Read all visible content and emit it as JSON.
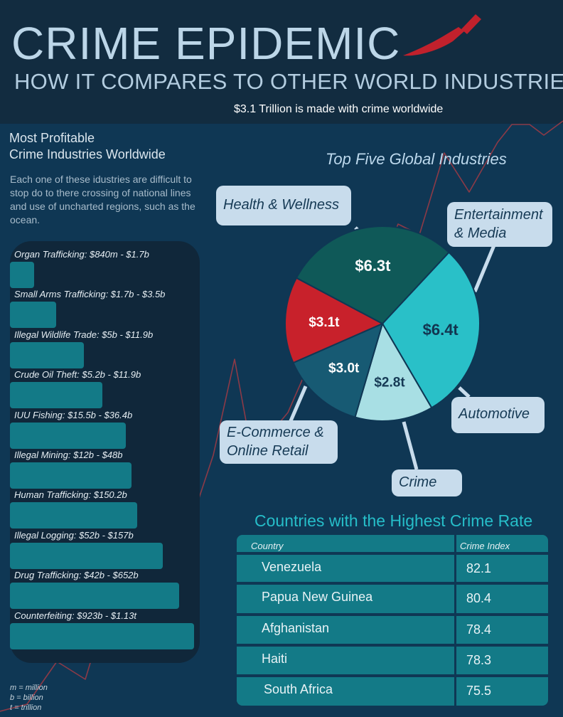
{
  "header": {
    "title": "CRIME EPIDEMIC",
    "subtitle": "HOW IT COMPARES TO OTHER WORLD INDUSTRIES",
    "tagline": "$3.1 Trillion is made with crime worldwide"
  },
  "colors": {
    "header_bg": "#122c40",
    "page_bg": "#0f3754",
    "bar_color": "#137a87",
    "knife": "#c1212c",
    "table_title": "#26bec9"
  },
  "left": {
    "heading_line1": "Most Profitable",
    "heading_line2": "Crime Industries Worldwide",
    "description": "Each one of these idustries are difficult to stop do to there crossing of national lines and use of uncharted regions, such as the ocean.",
    "legend": [
      "m = million",
      "b = billion",
      "t = trillion"
    ]
  },
  "chart_data": [
    {
      "type": "bar",
      "title": "Most Profitable Crime Industries Worldwide",
      "orientation": "horizontal",
      "categories": [
        "Organ Trafficking: $840m - $1.7b",
        "Small Arms Trafficking: $1.7b - $3.5b",
        "Illegal Wildlife Trade: $5b - $11.9b",
        "Crude Oil Theft: $5.2b - $11.9b",
        "IUU Fishing: $15.5b - $36.4b",
        "Illegal Mining: $12b - $48b",
        "Human Trafficking: $150.2b",
        "Illegal Logging: $52b - $157b",
        "Drug Trafficking: $42b - $652b",
        "Counterfeiting: $923b - $1.13t"
      ],
      "values": [
        0.13,
        0.25,
        0.4,
        0.5,
        0.63,
        0.66,
        0.69,
        0.83,
        0.92,
        1.0
      ]
    },
    {
      "type": "pie",
      "title": "Top Five Global Industries",
      "slices": [
        {
          "name": "Health & Wellness",
          "label": "$6.4t",
          "value": 6.4,
          "color": "#29c0c8"
        },
        {
          "name": "Entertainment & Media",
          "label": "$2.8t",
          "value": 2.8,
          "color": "#a8dfe4"
        },
        {
          "name": "Automotive",
          "label": "$3.0t",
          "value": 3.0,
          "color": "#175a73"
        },
        {
          "name": "Crime",
          "label": "$3.1t",
          "value": 3.1,
          "color": "#c8212b"
        },
        {
          "name": "E-Commerce & Online Retail",
          "label": "$6.3t",
          "value": 6.3,
          "color": "#0f5958"
        }
      ]
    },
    {
      "type": "table",
      "title": "Countries with the Highest Crime Rate",
      "columns": [
        "Country",
        "Crime Index"
      ],
      "rows": [
        [
          "Venezuela",
          "82.1"
        ],
        [
          "Papua New Guinea",
          "80.4"
        ],
        [
          "Afghanistan",
          "78.4"
        ],
        [
          "Haiti",
          "78.3"
        ],
        [
          "South Africa",
          "75.5"
        ]
      ]
    }
  ],
  "callouts": {
    "health": "Health & Wellness",
    "entertainment_1": "Entertainment",
    "entertainment_2": "& Media",
    "automotive": "Automotive",
    "crime": "Crime",
    "ecommerce_1": "E-Commerce &",
    "ecommerce_2": "Online Retail"
  }
}
